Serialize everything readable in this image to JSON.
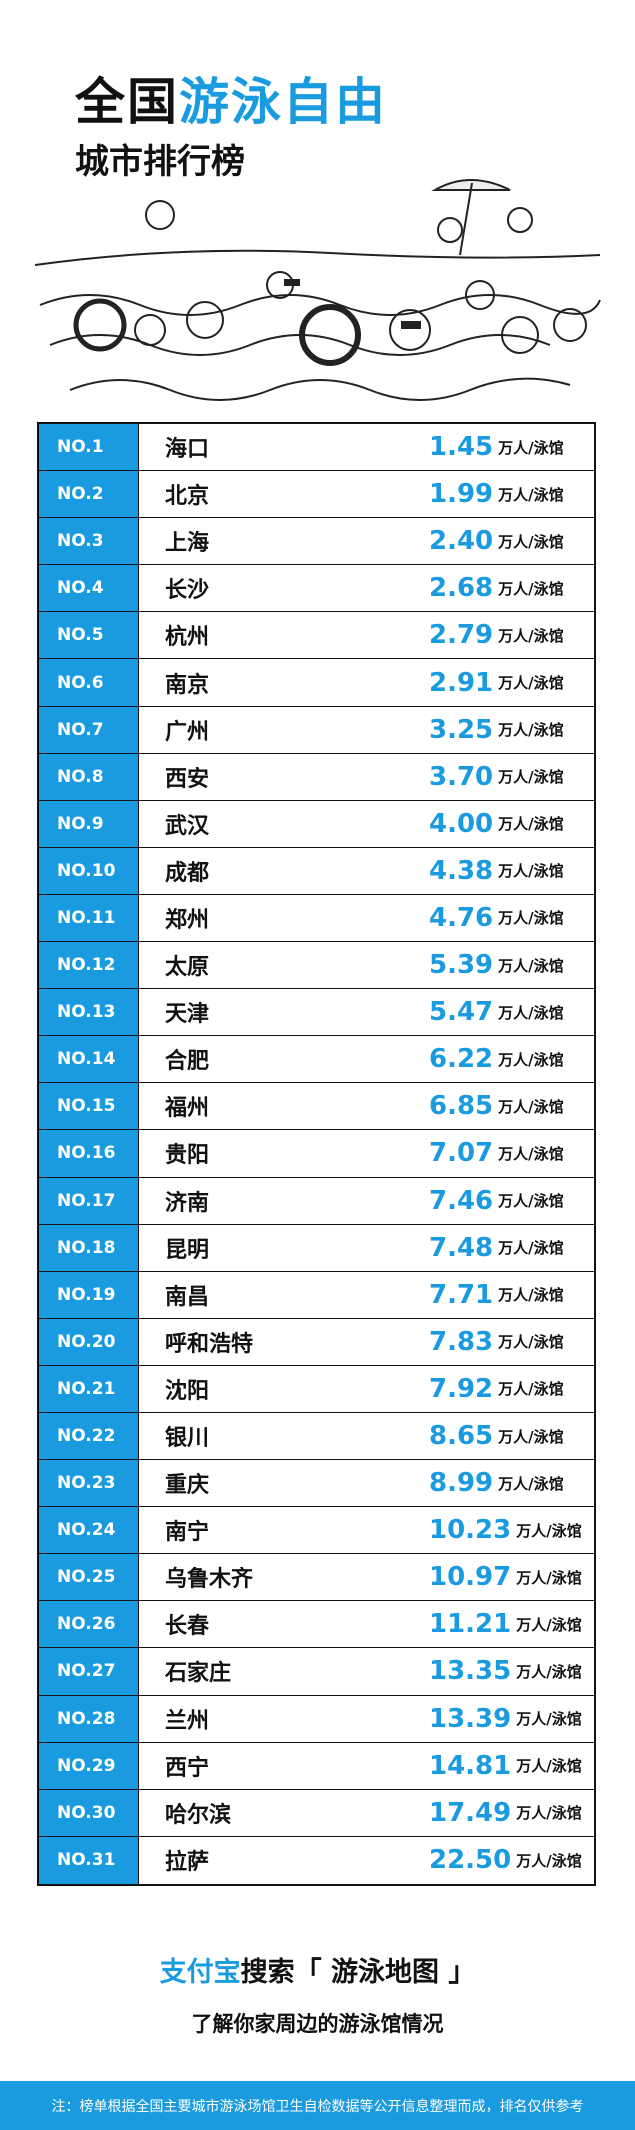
{
  "header": {
    "title_black": "全国",
    "title_blue": "游泳自由",
    "subtitle": "城市排行榜"
  },
  "table": {
    "unit": "万人/泳馆",
    "rows": [
      [
        "NO.1",
        "海口",
        "1.45"
      ],
      [
        "NO.2",
        "北京",
        "1.99"
      ],
      [
        "NO.3",
        "上海",
        "2.40"
      ],
      [
        "NO.4",
        "长沙",
        "2.68"
      ],
      [
        "NO.5",
        "杭州",
        "2.79"
      ],
      [
        "NO.6",
        "南京",
        "2.91"
      ],
      [
        "NO.7",
        "广州",
        "3.25"
      ],
      [
        "NO.8",
        "西安",
        "3.70"
      ],
      [
        "NO.9",
        "武汉",
        "4.00"
      ],
      [
        "NO.10",
        "成都",
        "4.38"
      ],
      [
        "NO.11",
        "郑州",
        "4.76"
      ],
      [
        "NO.12",
        "太原",
        "5.39"
      ],
      [
        "NO.13",
        "天津",
        "5.47"
      ],
      [
        "NO.14",
        "合肥",
        "6.22"
      ],
      [
        "NO.15",
        "福州",
        "6.85"
      ],
      [
        "NO.16",
        "贵阳",
        "7.07"
      ],
      [
        "NO.17",
        "济南",
        "7.46"
      ],
      [
        "NO.18",
        "昆明",
        "7.48"
      ],
      [
        "NO.19",
        "南昌",
        "7.71"
      ],
      [
        "NO.20",
        "呼和浩特",
        "7.83"
      ],
      [
        "NO.21",
        "沈阳",
        "7.92"
      ],
      [
        "NO.22",
        "银川",
        "8.65"
      ],
      [
        "NO.23",
        "重庆",
        "8.99"
      ],
      [
        "NO.24",
        "南宁",
        "10.23"
      ],
      [
        "NO.25",
        "乌鲁木齐",
        "10.97"
      ],
      [
        "NO.26",
        "长春",
        "11.21"
      ],
      [
        "NO.27",
        "石家庄",
        "13.35"
      ],
      [
        "NO.28",
        "兰州",
        "13.39"
      ],
      [
        "NO.29",
        "西宁",
        "14.81"
      ],
      [
        "NO.30",
        "哈尔滨",
        "17.49"
      ],
      [
        "NO.31",
        "拉萨",
        "22.50"
      ]
    ]
  },
  "footer": {
    "brand": "支付宝",
    "search": "搜索「 游泳地图 」",
    "tagline": "了解你家周边的游泳馆情况",
    "note": "注：榜单根据全国主要城市游泳场馆卫生自检数据等公开信息整理而成，排名仅供参考"
  }
}
